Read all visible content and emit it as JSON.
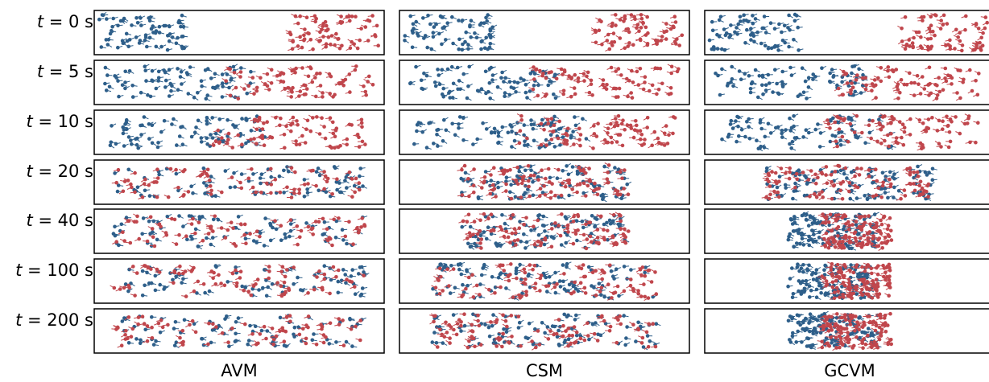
{
  "columns": [
    {
      "id": "avm",
      "label": "AVM"
    },
    {
      "id": "csm",
      "label": "CSM"
    },
    {
      "id": "gcvm",
      "label": "GCVM"
    }
  ],
  "rows": [
    {
      "var": "t",
      "eq": " = ",
      "value": "0",
      "unit": " s"
    },
    {
      "var": "t",
      "eq": " = ",
      "value": "5",
      "unit": " s"
    },
    {
      "var": "t",
      "eq": " = ",
      "value": "10",
      "unit": " s"
    },
    {
      "var": "t",
      "eq": " = ",
      "value": "20",
      "unit": " s"
    },
    {
      "var": "t",
      "eq": " = ",
      "value": "40",
      "unit": " s"
    },
    {
      "var": "t",
      "eq": " = ",
      "value": "100",
      "unit": " s"
    },
    {
      "var": "t",
      "eq": " = ",
      "value": "200",
      "unit": " s"
    }
  ],
  "colors": {
    "blue_agents": "#2e5f8a",
    "red_agents": "#c0464c",
    "frame": "#000000"
  }
}
